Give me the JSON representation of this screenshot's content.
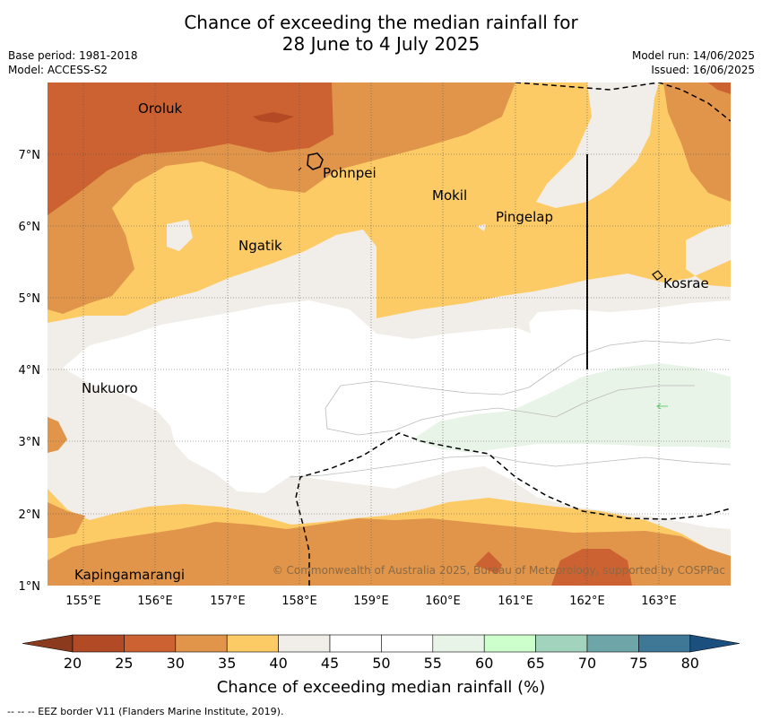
{
  "title": {
    "line1": "Chance of exceeding the median rainfall for",
    "line2": "28 June to 4 July 2025"
  },
  "meta": {
    "base_period": "Base period: 1981-2018",
    "model": "Model: ACCESS-S2",
    "model_run": "Model run: 14/06/2025",
    "issued": "Issued: 16/06/2025"
  },
  "map": {
    "lat_labels": [
      "7°N",
      "6°N",
      "5°N",
      "4°N",
      "3°N",
      "2°N",
      "1°N"
    ],
    "lon_labels": [
      "155°E",
      "156°E",
      "157°E",
      "158°E",
      "159°E",
      "160°E",
      "161°E",
      "162°E",
      "163°E"
    ],
    "places": {
      "oroluk": "Oroluk",
      "pohnpei": "Pohnpei",
      "mokil": "Mokil",
      "pingelap": "Pingelap",
      "ngatik": "Ngatik",
      "kosrae": "Kosrae",
      "nukuoro": "Nukuoro",
      "kapingamarangi": "Kapingamarangi"
    },
    "copyright": "© Commonwealth of Australia 2025, Bureau of Meteorology, supported by COSPPac"
  },
  "colorbar": {
    "labels": [
      "20",
      "25",
      "30",
      "35",
      "40",
      "45",
      "50",
      "55",
      "60",
      "65",
      "70",
      "75",
      "80"
    ],
    "colors": [
      "#8b3a1e",
      "#b24a25",
      "#cc6231",
      "#e0954a",
      "#fdcb66",
      "#f1ede8",
      "#ffffff",
      "#ffffff",
      "#e9f4e8",
      "#ccffcc",
      "#a2d4bd",
      "#6ea5a8",
      "#3f7797",
      "#1a4f7e"
    ],
    "title": "Chance of exceeding median rainfall (%)"
  },
  "footer": "--  --  -- EEZ border V11 (Flanders Marine Institute, 2019)."
}
